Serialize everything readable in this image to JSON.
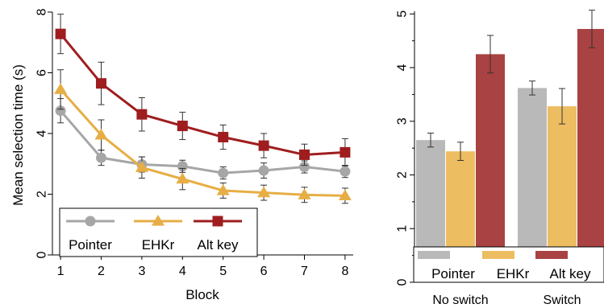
{
  "chart_data": [
    {
      "type": "line",
      "xlabel": "Block",
      "ylabel": "Mean selection time (s)",
      "x": [
        1,
        2,
        3,
        4,
        5,
        6,
        7,
        8
      ],
      "xlim": [
        0.8,
        8.2
      ],
      "ylim": [
        0,
        8
      ],
      "yticks": [
        0,
        2,
        4,
        6,
        8
      ],
      "xticks": [
        1,
        2,
        3,
        4,
        5,
        6,
        7,
        8
      ],
      "grid": false,
      "legend": "bottom-left",
      "series": [
        {
          "name": "Pointer",
          "color": "#a6a6a6",
          "marker": "circle",
          "values": [
            4.75,
            3.2,
            2.98,
            2.92,
            2.7,
            2.78,
            2.9,
            2.75
          ],
          "err": [
            0.4,
            0.25,
            0.25,
            0.2,
            0.2,
            0.25,
            0.2,
            0.2
          ]
        },
        {
          "name": "EHKr",
          "color": "#e7ae45",
          "marker": "triangle",
          "values": [
            5.45,
            3.95,
            2.88,
            2.5,
            2.12,
            2.05,
            1.98,
            1.95
          ],
          "err": [
            0.65,
            0.5,
            0.35,
            0.35,
            0.25,
            0.25,
            0.25,
            0.25
          ]
        },
        {
          "name": "Alt key",
          "color": "#9f1d1f",
          "marker": "square",
          "values": [
            7.28,
            5.65,
            4.63,
            4.25,
            3.88,
            3.6,
            3.3,
            3.38
          ],
          "err": [
            0.65,
            0.7,
            0.55,
            0.45,
            0.4,
            0.4,
            0.35,
            0.45
          ]
        }
      ]
    },
    {
      "type": "bar",
      "categories": [
        "No switch",
        "Switch"
      ],
      "ylim": [
        0,
        5.05
      ],
      "yticks": [
        0,
        1,
        2,
        3,
        4,
        5
      ],
      "grid": false,
      "legend": "bottom",
      "series": [
        {
          "name": "Pointer",
          "color": "#b9b9b9",
          "values": [
            2.65,
            3.62
          ],
          "err": [
            0.13,
            0.13
          ]
        },
        {
          "name": "EHKr",
          "color": "#edbd62",
          "values": [
            2.44,
            3.28
          ],
          "err": [
            0.17,
            0.33
          ]
        },
        {
          "name": "Alt key",
          "color": "#a94242",
          "values": [
            4.25,
            4.72
          ],
          "err": [
            0.35,
            0.35
          ]
        }
      ]
    }
  ]
}
